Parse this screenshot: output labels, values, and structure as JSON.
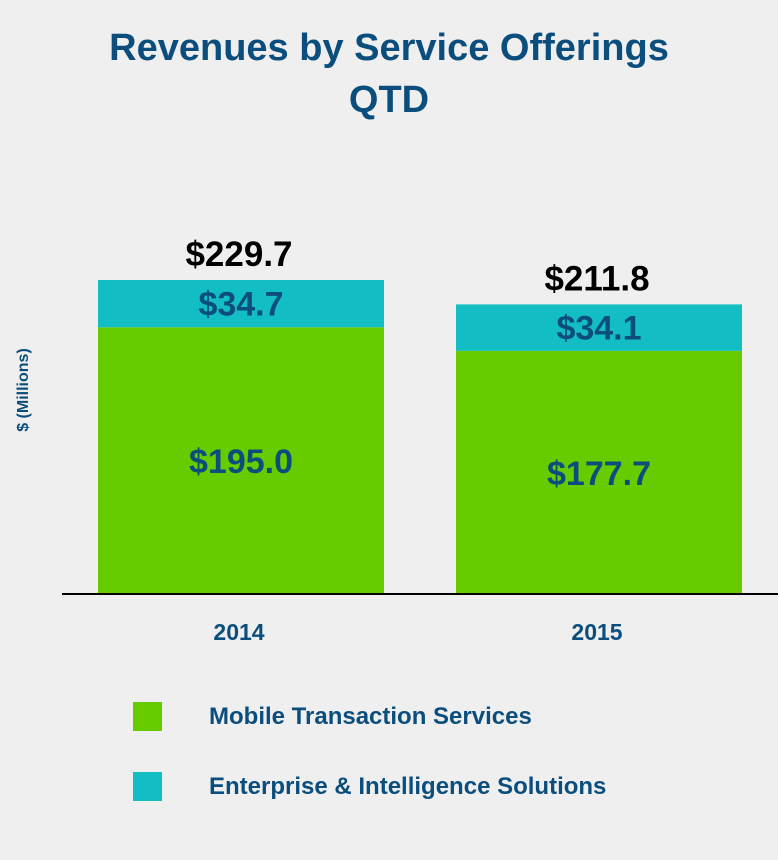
{
  "chart_data": {
    "type": "bar",
    "stacked": true,
    "title": "Revenues by Service Offerings",
    "subtitle": "QTD",
    "ylabel": "$ (Millions)",
    "xlabel": "",
    "categories": [
      "2014",
      "2015"
    ],
    "series": [
      {
        "name": "Mobile Transaction Services",
        "values": [
          195.0,
          177.7
        ],
        "labels": [
          "$195.0",
          "$177.7"
        ],
        "color": "#66cc00"
      },
      {
        "name": "Enterprise & Intelligence Solutions",
        "values": [
          34.7,
          34.1
        ],
        "labels": [
          "$34.7",
          "$34.1"
        ],
        "color": "#12bec4"
      }
    ],
    "totals": [
      229.7,
      211.8
    ],
    "total_labels": [
      "$229.7",
      "$211.8"
    ],
    "ylim": [
      0,
      250
    ],
    "grid": false,
    "legend_position": "bottom",
    "colors": {
      "title": "#0b4e7d",
      "labels": "#0b4e7d",
      "totals": "#000000",
      "axis": "#000000"
    }
  }
}
